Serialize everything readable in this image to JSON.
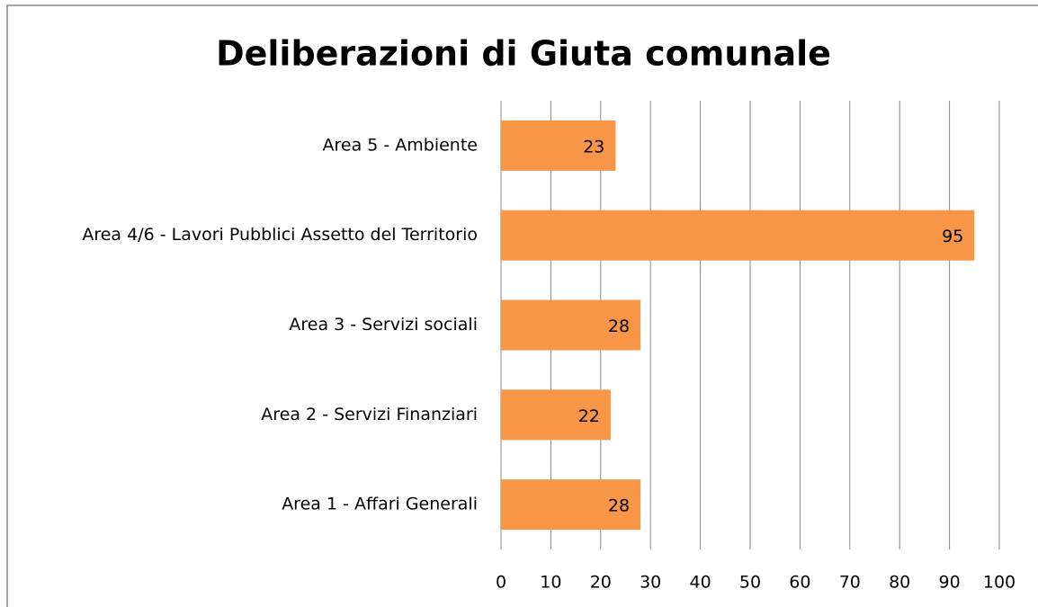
{
  "chart_data": {
    "type": "hbar",
    "title": "Deliberazioni di Giuta comunale",
    "categories": [
      "Area 1 - Affari Generali",
      "Area 2 - Servizi Finanziari",
      "Area 3 - Servizi sociali",
      "Area 4/6 - Lavori Pubblici Assetto del Territorio",
      "Area 5 - Ambiente"
    ],
    "values": [
      28,
      22,
      28,
      95,
      23
    ],
    "color": "#f79646",
    "xlim": [
      0,
      100
    ],
    "xticks": [
      0,
      10,
      20,
      30,
      40,
      50,
      60,
      70,
      80,
      90,
      100
    ],
    "grid": true
  }
}
